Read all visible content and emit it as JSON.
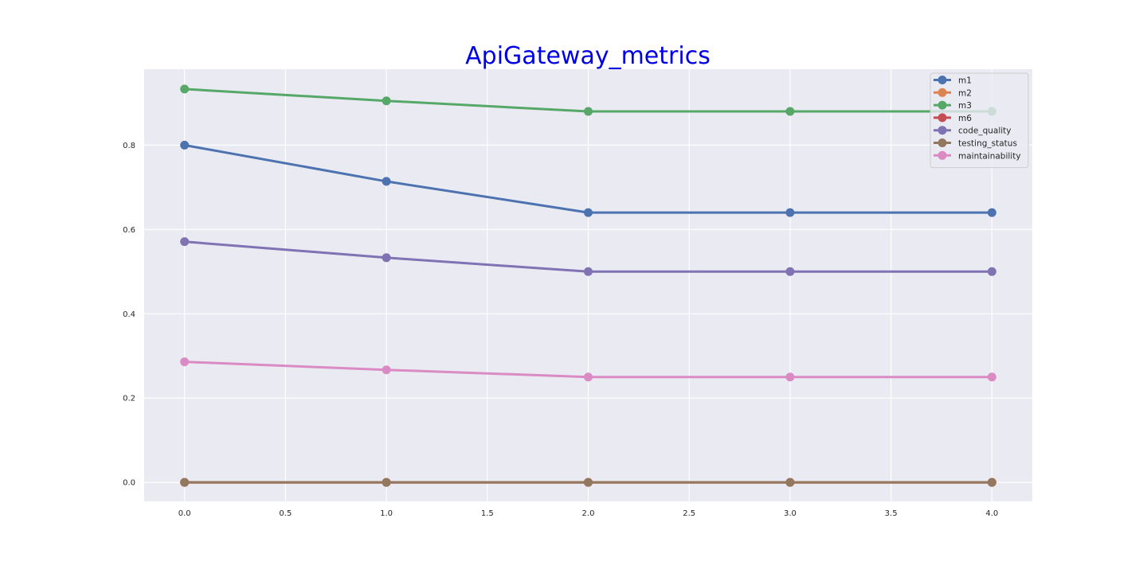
{
  "chart_data": {
    "type": "line",
    "title": "ApiGateway_metrics",
    "xlabel": "",
    "ylabel": "",
    "x": [
      0,
      1,
      2,
      3,
      4
    ],
    "xlim": [
      -0.2,
      4.2
    ],
    "ylim": [
      -0.045,
      0.98
    ],
    "xticks": [
      0.0,
      0.5,
      1.0,
      1.5,
      2.0,
      2.5,
      3.0,
      3.5,
      4.0
    ],
    "xtick_labels": [
      "0.0",
      "0.5",
      "1.0",
      "1.5",
      "2.0",
      "2.5",
      "3.0",
      "3.5",
      "4.0"
    ],
    "yticks": [
      0.0,
      0.2,
      0.4,
      0.6,
      0.8
    ],
    "ytick_labels": [
      "0.0",
      "0.2",
      "0.4",
      "0.6",
      "0.8"
    ],
    "grid": true,
    "legend_position": "top-right",
    "series": [
      {
        "name": "m1",
        "color": "#4c72b0",
        "values": [
          0.8,
          0.714,
          0.64,
          0.64,
          0.64
        ]
      },
      {
        "name": "m2",
        "color": "#dd8452",
        "values": [
          0,
          0,
          0,
          0,
          0
        ]
      },
      {
        "name": "m3",
        "color": "#55a868",
        "values": [
          0.933,
          0.905,
          0.88,
          0.88,
          0.88
        ]
      },
      {
        "name": "m6",
        "color": "#c44e52",
        "values": [
          0,
          0,
          0,
          0,
          0
        ]
      },
      {
        "name": "code_quality",
        "color": "#8172b3",
        "values": [
          0.571,
          0.533,
          0.5,
          0.5,
          0.5
        ]
      },
      {
        "name": "testing_status",
        "color": "#937860",
        "values": [
          0,
          0,
          0,
          0,
          0
        ]
      },
      {
        "name": "maintainability",
        "color": "#da8bc3",
        "values": [
          0.286,
          0.267,
          0.25,
          0.25,
          0.25
        ]
      }
    ],
    "colors": {
      "title": "#0000e6",
      "background": "#eaeaf2",
      "grid": "#ffffff"
    }
  }
}
